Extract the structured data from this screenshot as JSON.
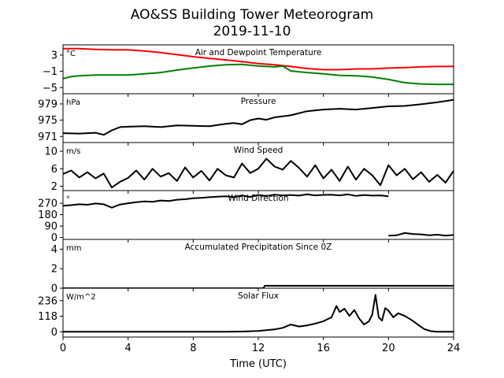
{
  "title_line1": "AO&SS Building Tower Meteorogram",
  "title_line2": "2019-11-10",
  "chart_data": {
    "type": "line",
    "xlabel": "Time (UTC)",
    "xlim": [
      0,
      24
    ],
    "xticks": [
      0,
      4,
      8,
      12,
      16,
      20,
      24
    ],
    "panels": [
      {
        "title": "Air and Dewpoint Temperature",
        "unit": "°C",
        "ylim": [
          -6.5,
          5.5
        ],
        "yticks": [
          3,
          -1,
          -5
        ],
        "ytick_labels": [
          "3",
          "−1",
          "−5"
        ],
        "series": [
          {
            "color": "#ff0000",
            "x": [
              0,
              1,
              2,
              3,
              4,
              5,
              6,
              7,
              8,
              9,
              10,
              11,
              12,
              13,
              14,
              15,
              16,
              17,
              18,
              19,
              20,
              21,
              22,
              23,
              24
            ],
            "y": [
              4.6,
              4.6,
              4.4,
              4.3,
              4.3,
              4.0,
              3.6,
              3.1,
              2.6,
              2.2,
              1.8,
              1.4,
              0.9,
              0.6,
              0.2,
              -0.3,
              -0.6,
              -0.6,
              -0.4,
              -0.4,
              -0.2,
              -0.1,
              0.1,
              0.2,
              0.2
            ]
          },
          {
            "color": "#008000",
            "x": [
              0,
              0.5,
              1,
              2,
              3,
              4,
              5,
              6,
              7,
              8,
              9,
              10,
              11,
              12,
              13,
              13.5,
              14,
              15,
              16,
              17,
              18,
              19,
              20,
              21,
              22,
              23,
              24
            ],
            "y": [
              -2.8,
              -2.3,
              -2.1,
              -1.9,
              -1.9,
              -1.9,
              -1.6,
              -1.3,
              -0.7,
              -0.2,
              0.3,
              0.6,
              0.7,
              0.3,
              0.1,
              0.3,
              -0.9,
              -1.3,
              -1.6,
              -2.0,
              -2.1,
              -2.4,
              -3.0,
              -3.8,
              -4.1,
              -4.2,
              -4.2
            ]
          }
        ]
      },
      {
        "title": "Pressure",
        "unit": "hPa",
        "ylim": [
          969.5,
          981.5
        ],
        "yticks": [
          971,
          975,
          979
        ],
        "series": [
          {
            "color": "#000000",
            "x": [
              0,
              1,
              2,
              2.5,
              3,
              3.5,
              4,
              5,
              6,
              7,
              8,
              9,
              10,
              10.5,
              11,
              11.5,
              12,
              12.5,
              13,
              14,
              15,
              16,
              17,
              18,
              19,
              20,
              21,
              22,
              23,
              24
            ],
            "y": [
              971.8,
              971.7,
              971.9,
              971.4,
              972.5,
              973.3,
              973.4,
              973.5,
              973.3,
              973.7,
              973.6,
              973.5,
              974.1,
              974.3,
              974.0,
              975.0,
              975.4,
              975.1,
              975.7,
              976.2,
              977.2,
              977.6,
              977.8,
              977.6,
              978.0,
              978.4,
              978.5,
              978.9,
              979.4,
              980.0
            ]
          }
        ]
      },
      {
        "title": "Wind Speed",
        "unit": "m/s",
        "ylim": [
          1,
          12
        ],
        "yticks": [
          2,
          6,
          10
        ],
        "series": [
          {
            "color": "#000000",
            "x": [
              0,
              0.5,
              1,
              1.5,
              2,
              2.5,
              3,
              3.5,
              4,
              4.5,
              5,
              5.5,
              6,
              6.5,
              7,
              7.5,
              8,
              8.5,
              9,
              9.5,
              10,
              10.5,
              11,
              11.5,
              12,
              12.5,
              13,
              13.5,
              14,
              14.5,
              15,
              15.5,
              16,
              16.5,
              17,
              17.5,
              18,
              18.5,
              19,
              19.5,
              20,
              20.5,
              21,
              21.5,
              22,
              22.5,
              23,
              23.5,
              24
            ],
            "y": [
              4.8,
              5.6,
              4.0,
              5.2,
              3.8,
              4.9,
              1.7,
              3.0,
              3.9,
              5.6,
              3.5,
              6.0,
              4.2,
              5.0,
              3.2,
              6.3,
              4.0,
              5.5,
              3.3,
              6.0,
              4.5,
              4.0,
              7.2,
              5.0,
              6.0,
              8.3,
              6.5,
              5.8,
              7.8,
              6.2,
              4.2,
              6.8,
              3.8,
              5.8,
              3.2,
              6.5,
              3.5,
              6.0,
              4.5,
              2.2,
              6.8,
              4.5,
              6.0,
              3.6,
              5.2,
              3.0,
              4.6,
              2.8,
              5.5
            ]
          }
        ]
      },
      {
        "title": "Wind Direction",
        "unit": "°",
        "ylim": [
          -15,
          370
        ],
        "yticks": [
          0,
          90,
          180,
          270
        ],
        "series": [
          {
            "color": "#000000",
            "x": [
              0,
              0.5,
              1,
              1.5,
              2,
              2.5,
              3,
              3.5,
              4,
              4.5,
              5,
              5.5,
              6,
              6.5,
              7,
              7.5,
              8,
              8.5,
              9,
              9.5,
              10,
              10.5,
              11,
              11.5,
              12,
              12.5,
              13,
              13.5,
              14,
              14.5,
              15,
              15.5,
              16,
              16.5,
              17,
              17.5,
              18,
              18.5,
              19,
              19.5,
              20
            ],
            "y": [
              250,
              255,
              262,
              258,
              268,
              262,
              235,
              260,
              270,
              278,
              285,
              282,
              292,
              288,
              298,
              302,
              310,
              313,
              318,
              322,
              325,
              318,
              332,
              320,
              335,
              328,
              338,
              332,
              335,
              330,
              340,
              332,
              336,
              338,
              332,
              340,
              328,
              335,
              330,
              332,
              325
            ]
          },
          {
            "color": "#000000",
            "x": [
              20,
              20.5,
              21,
              21.5,
              22,
              22.5,
              23,
              23.5,
              24
            ],
            "y": [
              15,
              18,
              35,
              28,
              25,
              18,
              22,
              15,
              20
            ]
          }
        ]
      },
      {
        "title": "Accumulated Precipitation Since 0Z",
        "unit": "mm",
        "ylim": [
          0,
          5
        ],
        "yticks": [
          0,
          2,
          4
        ],
        "series": [
          {
            "color": "#000000",
            "x": [
              0,
              12.3,
              12.4,
              24
            ],
            "y": [
              0,
              0,
              0.25,
              0.25
            ]
          }
        ]
      },
      {
        "title": "Solar Flux",
        "unit": "W/m^2",
        "ylim": [
          -40,
          330
        ],
        "yticks": [
          0,
          118,
          236
        ],
        "series": [
          {
            "color": "#000000",
            "x": [
              0,
              10,
              11,
              12,
              13,
              13.5,
              14,
              14.5,
              15,
              15.5,
              16,
              16.5,
              16.8,
              17,
              17.3,
              17.6,
              17.9,
              18.2,
              18.5,
              18.8,
              19,
              19.2,
              19.4,
              19.6,
              19.8,
              20,
              20.3,
              20.6,
              21,
              21.4,
              21.8,
              22.2,
              22.6,
              23,
              24
            ],
            "y": [
              0,
              0,
              2,
              6,
              18,
              30,
              55,
              40,
              48,
              62,
              80,
              110,
              195,
              150,
              175,
              120,
              165,
              100,
              55,
              80,
              130,
              280,
              110,
              85,
              180,
              160,
              110,
              140,
              120,
              90,
              55,
              20,
              5,
              0,
              0
            ]
          }
        ]
      }
    ]
  }
}
